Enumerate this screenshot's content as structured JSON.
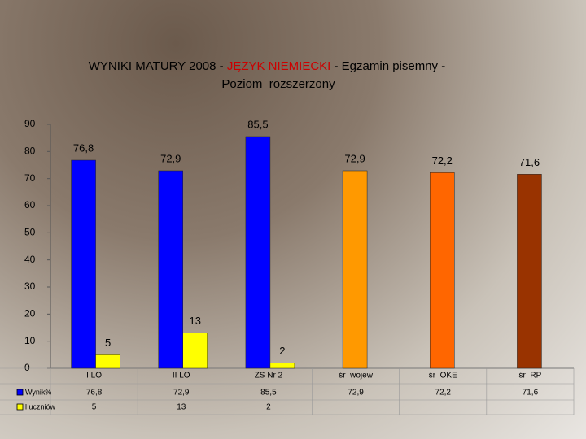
{
  "chart_data": {
    "type": "bar",
    "title": [
      {
        "text": "WYNIKI MATURY 2008 - ",
        "color": "#000000"
      },
      {
        "text": "JĘZYK NIEMIECKI",
        "color": "#cc0000"
      },
      {
        "text": " - Egzamin pisemny -",
        "color": "#000000"
      },
      {
        "text": "Poziom  rozszerzony",
        "color": "#000000"
      }
    ],
    "categories": [
      "I LO",
      "II LO",
      "ZS Nr 2",
      "śr  wojew",
      "śr  OKE",
      "śr  RP"
    ],
    "series": [
      {
        "name": "Wynik%",
        "color": "#0000ff",
        "colors": [
          "#0000ff",
          "#0000ff",
          "#0000ff",
          "#ff9900",
          "#ff6600",
          "#993300"
        ],
        "values": [
          76.8,
          72.9,
          85.5,
          72.9,
          72.2,
          71.6
        ],
        "value_labels": [
          "76,8",
          "72,9",
          "85,5",
          "72,9",
          "72,2",
          "71,6"
        ]
      },
      {
        "name": "l uczniów",
        "color": "#ffff00",
        "values": [
          5,
          13,
          2,
          null,
          null,
          null
        ]
      }
    ],
    "ylim": [
      0,
      90
    ],
    "yticks": [
      0,
      10,
      20,
      30,
      40,
      50,
      60,
      70,
      80,
      90
    ]
  }
}
